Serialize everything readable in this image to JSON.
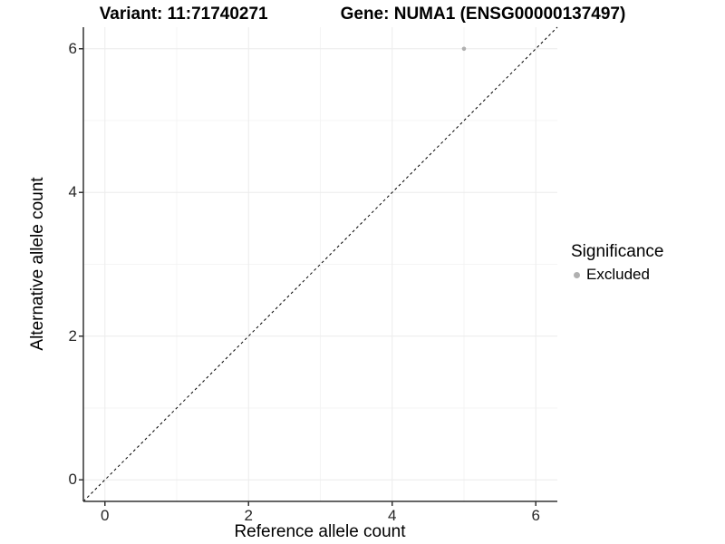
{
  "title": {
    "variant": "Variant: 11:71740271",
    "gene": "Gene: NUMA1 (ENSG00000137497)"
  },
  "legend": {
    "title": "Significance",
    "items": [
      {
        "label": "Excluded",
        "color": "#b0b0b0"
      }
    ]
  },
  "colors": {
    "background": "#ffffff",
    "grid_major": "#ececec",
    "grid_minor": "#f4f4f4",
    "axis_line": "#333333",
    "tick_mark": "#333333",
    "tick_text": "#262626",
    "reference_line": "#000000",
    "point_excluded": "#b0b0b0"
  },
  "chart_data": {
    "type": "scatter",
    "title": "Variant: 11:71740271    Gene: NUMA1 (ENSG00000137497)",
    "xlabel": "Reference allele count",
    "ylabel": "Alternative allele count",
    "xlim": [
      -0.3,
      6.3
    ],
    "ylim": [
      -0.3,
      6.3
    ],
    "x_ticks": [
      0,
      2,
      4,
      6
    ],
    "y_ticks": [
      0,
      2,
      4,
      6
    ],
    "x_minor_ticks": [
      1,
      3,
      5
    ],
    "y_minor_ticks": [
      1,
      3,
      5
    ],
    "grid": true,
    "legend_position": "right",
    "series": [
      {
        "name": "Excluded",
        "color": "#b0b0b0",
        "point_radius": 2.3,
        "points": [
          {
            "x": 5,
            "y": 6
          }
        ]
      }
    ],
    "reference_line": {
      "type": "identity",
      "from": [
        -0.3,
        -0.3
      ],
      "to": [
        6.3,
        6.3
      ],
      "style": "dashed",
      "color": "#000000"
    }
  }
}
